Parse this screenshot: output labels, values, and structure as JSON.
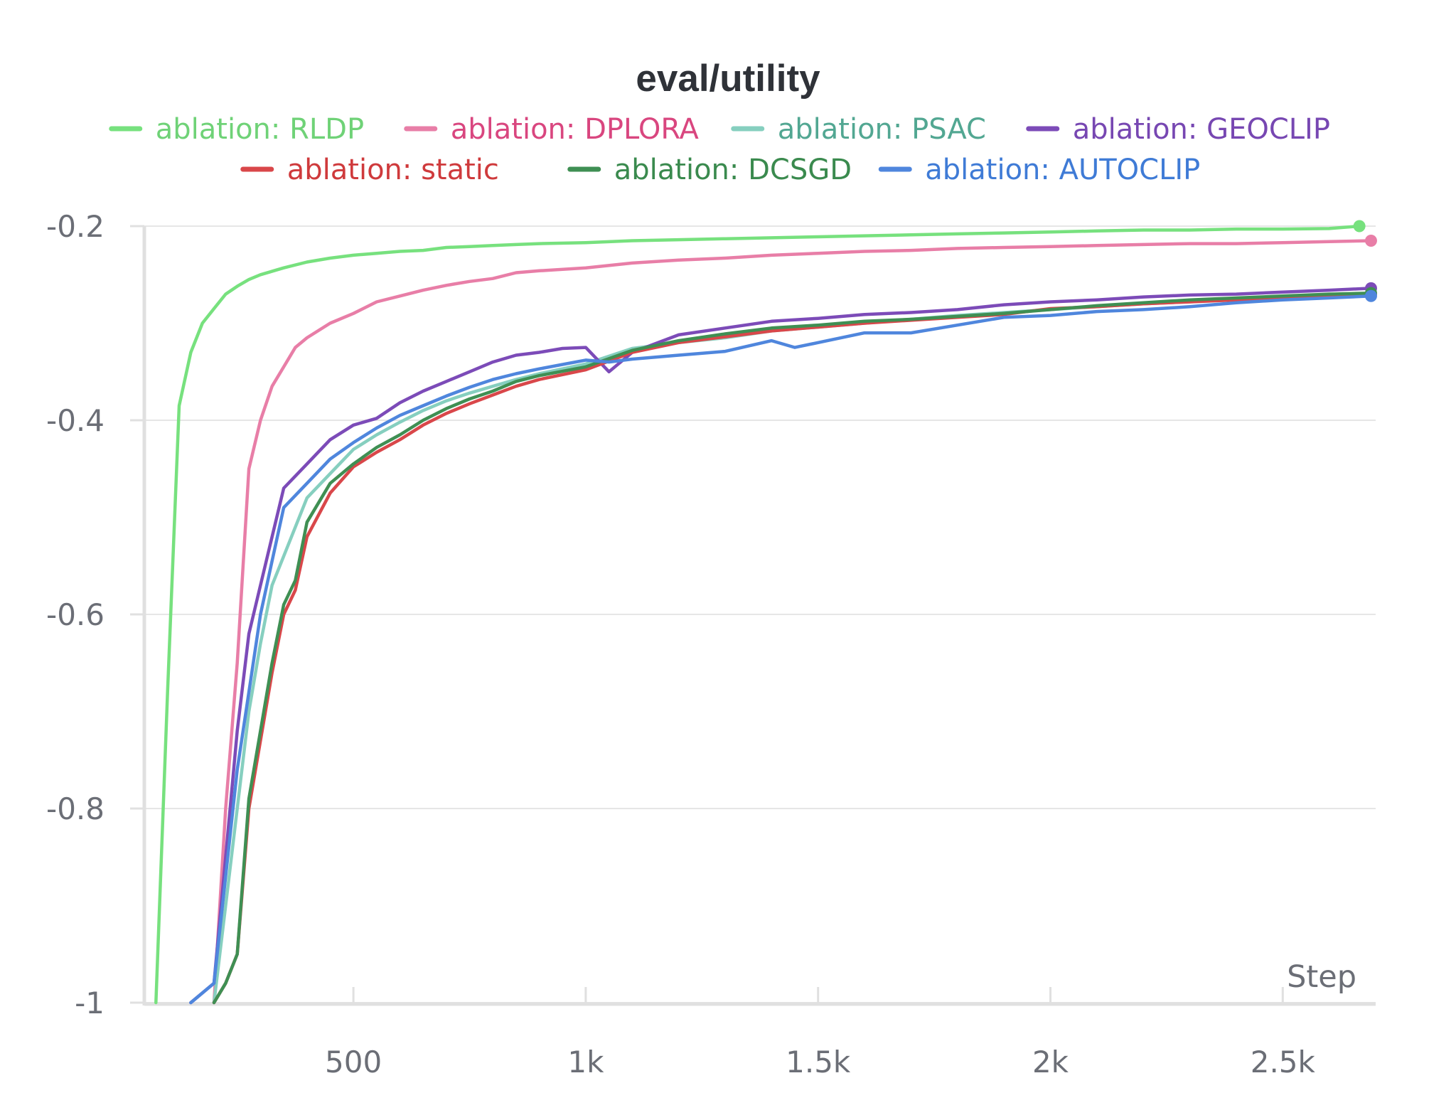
{
  "chart_data": {
    "type": "line",
    "title": "eval/utility",
    "xlabel": "Step",
    "ylabel": "",
    "xlim": [
      50,
      2700
    ],
    "ylim": [
      -1,
      -0.2
    ],
    "xticks": [
      500,
      1000,
      1500,
      2000,
      2500
    ],
    "xtick_labels": [
      "500",
      "1k",
      "1.5k",
      "2k",
      "2.5k"
    ],
    "yticks": [
      -0.2,
      -0.4,
      -0.6,
      -0.8,
      -1
    ],
    "ytick_labels": [
      "-0.2",
      "-0.4",
      "-0.6",
      "-0.8",
      "-1"
    ],
    "grid": true,
    "legend_position": "top",
    "series": [
      {
        "name": "ablation: RLDP",
        "color": "#77e17e",
        "label_color": "#6fd277",
        "x": [
          75,
          100,
          125,
          150,
          175,
          200,
          225,
          250,
          275,
          300,
          350,
          400,
          450,
          500,
          550,
          600,
          650,
          700,
          750,
          800,
          850,
          900,
          1000,
          1100,
          1200,
          1300,
          1400,
          1500,
          1600,
          1700,
          1800,
          1900,
          2000,
          2100,
          2200,
          2300,
          2400,
          2500,
          2600,
          2665
        ],
        "y": [
          -1.0,
          -0.68,
          -0.385,
          -0.33,
          -0.3,
          -0.285,
          -0.27,
          -0.262,
          -0.255,
          -0.25,
          -0.243,
          -0.237,
          -0.233,
          -0.23,
          -0.228,
          -0.226,
          -0.225,
          -0.222,
          -0.221,
          -0.22,
          -0.219,
          -0.218,
          -0.217,
          -0.215,
          -0.214,
          -0.213,
          -0.212,
          -0.211,
          -0.21,
          -0.209,
          -0.208,
          -0.207,
          -0.206,
          -0.205,
          -0.204,
          -0.204,
          -0.203,
          -0.203,
          -0.2025,
          -0.2
        ]
      },
      {
        "name": "ablation: DPLORA",
        "color": "#e87ea7",
        "label_color": "#d9467f",
        "x": [
          200,
          225,
          250,
          275,
          300,
          325,
          350,
          375,
          400,
          450,
          500,
          550,
          600,
          650,
          700,
          750,
          800,
          850,
          900,
          1000,
          1100,
          1200,
          1300,
          1400,
          1500,
          1600,
          1700,
          1800,
          1900,
          2000,
          2100,
          2200,
          2300,
          2400,
          2500,
          2600,
          2690
        ],
        "y": [
          -1.0,
          -0.8,
          -0.65,
          -0.45,
          -0.4,
          -0.365,
          -0.345,
          -0.325,
          -0.315,
          -0.3,
          -0.29,
          -0.278,
          -0.272,
          -0.266,
          -0.261,
          -0.257,
          -0.254,
          -0.248,
          -0.246,
          -0.243,
          -0.238,
          -0.235,
          -0.233,
          -0.23,
          -0.228,
          -0.226,
          -0.225,
          -0.223,
          -0.222,
          -0.221,
          -0.22,
          -0.219,
          -0.218,
          -0.218,
          -0.217,
          -0.216,
          -0.215
        ]
      },
      {
        "name": "ablation: PSAC",
        "color": "#86cfbf",
        "label_color": "#52a792",
        "x": [
          200,
          225,
          250,
          275,
          300,
          325,
          350,
          400,
          450,
          500,
          550,
          600,
          650,
          700,
          750,
          800,
          850,
          900,
          1000,
          1100,
          1200,
          1300,
          1400,
          1500,
          1600,
          1700,
          1800,
          1900,
          2000,
          2100,
          2200,
          2300,
          2400,
          2500,
          2600,
          2690
        ],
        "y": [
          -1.0,
          -0.9,
          -0.8,
          -0.7,
          -0.63,
          -0.57,
          -0.54,
          -0.48,
          -0.455,
          -0.43,
          -0.415,
          -0.402,
          -0.39,
          -0.38,
          -0.372,
          -0.365,
          -0.358,
          -0.352,
          -0.342,
          -0.326,
          -0.32,
          -0.315,
          -0.308,
          -0.304,
          -0.3,
          -0.296,
          -0.292,
          -0.289,
          -0.286,
          -0.283,
          -0.28,
          -0.278,
          -0.276,
          -0.273,
          -0.271,
          -0.27
        ]
      },
      {
        "name": "ablation: GEOCLIP",
        "color": "#7c4bb8",
        "label_color": "#7747b2",
        "x": [
          150,
          200,
          225,
          250,
          275,
          300,
          325,
          350,
          400,
          450,
          500,
          550,
          600,
          650,
          700,
          750,
          800,
          850,
          900,
          950,
          1000,
          1050,
          1100,
          1200,
          1300,
          1400,
          1500,
          1600,
          1700,
          1800,
          1900,
          2000,
          2100,
          2200,
          2300,
          2400,
          2500,
          2600,
          2690
        ],
        "y": [
          -1.0,
          -0.98,
          -0.85,
          -0.72,
          -0.62,
          -0.57,
          -0.52,
          -0.47,
          -0.445,
          -0.42,
          -0.405,
          -0.398,
          -0.382,
          -0.37,
          -0.36,
          -0.35,
          -0.34,
          -0.333,
          -0.33,
          -0.326,
          -0.325,
          -0.35,
          -0.33,
          -0.312,
          -0.305,
          -0.298,
          -0.295,
          -0.291,
          -0.289,
          -0.286,
          -0.281,
          -0.278,
          -0.276,
          -0.273,
          -0.271,
          -0.27,
          -0.268,
          -0.266,
          -0.264
        ]
      },
      {
        "name": "ablation: static",
        "color": "#d9474a",
        "label_color": "#cf3a3c",
        "x": [
          200,
          225,
          250,
          275,
          300,
          325,
          350,
          375,
          400,
          450,
          500,
          550,
          600,
          650,
          700,
          750,
          800,
          850,
          900,
          1000,
          1100,
          1200,
          1300,
          1400,
          1500,
          1600,
          1700,
          1800,
          1900,
          2000,
          2100,
          2200,
          2300,
          2400,
          2500,
          2600,
          2690
        ],
        "y": [
          -1.0,
          -0.98,
          -0.95,
          -0.8,
          -0.73,
          -0.66,
          -0.6,
          -0.575,
          -0.52,
          -0.475,
          -0.448,
          -0.433,
          -0.42,
          -0.405,
          -0.393,
          -0.383,
          -0.374,
          -0.365,
          -0.358,
          -0.348,
          -0.33,
          -0.32,
          -0.314,
          -0.308,
          -0.304,
          -0.3,
          -0.297,
          -0.294,
          -0.291,
          -0.285,
          -0.283,
          -0.28,
          -0.278,
          -0.276,
          -0.273,
          -0.271,
          -0.27
        ]
      },
      {
        "name": "ablation: DCSGD",
        "color": "#3f8f53",
        "label_color": "#3a8a4e",
        "x": [
          200,
          225,
          250,
          275,
          300,
          325,
          350,
          375,
          400,
          450,
          500,
          550,
          600,
          650,
          700,
          750,
          800,
          850,
          900,
          1000,
          1100,
          1200,
          1300,
          1400,
          1500,
          1600,
          1700,
          1800,
          1900,
          2000,
          2100,
          2200,
          2300,
          2400,
          2500,
          2600,
          2690
        ],
        "y": [
          -1.0,
          -0.98,
          -0.95,
          -0.79,
          -0.72,
          -0.65,
          -0.59,
          -0.565,
          -0.505,
          -0.465,
          -0.445,
          -0.428,
          -0.415,
          -0.4,
          -0.388,
          -0.378,
          -0.37,
          -0.36,
          -0.354,
          -0.345,
          -0.328,
          -0.318,
          -0.311,
          -0.305,
          -0.302,
          -0.298,
          -0.296,
          -0.293,
          -0.29,
          -0.286,
          -0.282,
          -0.279,
          -0.276,
          -0.274,
          -0.272,
          -0.27,
          -0.269
        ]
      },
      {
        "name": "ablation: AUTOCLIP",
        "color": "#4f86dd",
        "label_color": "#3f7bd6",
        "x": [
          150,
          200,
          225,
          250,
          275,
          300,
          325,
          350,
          400,
          450,
          500,
          550,
          600,
          650,
          700,
          750,
          800,
          850,
          900,
          1000,
          1050,
          1100,
          1200,
          1300,
          1400,
          1450,
          1500,
          1600,
          1700,
          1800,
          1900,
          2000,
          2100,
          2200,
          2300,
          2400,
          2500,
          2600,
          2690
        ],
        "y": [
          -1.0,
          -0.98,
          -0.87,
          -0.76,
          -0.68,
          -0.6,
          -0.545,
          -0.49,
          -0.465,
          -0.44,
          -0.423,
          -0.408,
          -0.395,
          -0.385,
          -0.375,
          -0.366,
          -0.358,
          -0.352,
          -0.347,
          -0.338,
          -0.34,
          -0.337,
          -0.333,
          -0.329,
          -0.318,
          -0.325,
          -0.32,
          -0.31,
          -0.31,
          -0.302,
          -0.294,
          -0.292,
          -0.288,
          -0.286,
          -0.283,
          -0.279,
          -0.276,
          -0.274,
          -0.272
        ]
      }
    ]
  }
}
